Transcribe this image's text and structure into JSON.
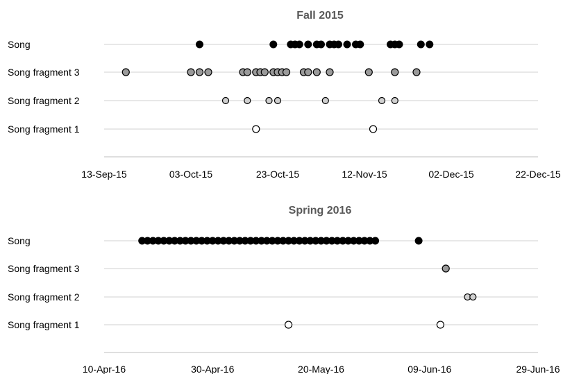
{
  "chart_data": [
    {
      "type": "scatter",
      "title": "Fall 2015",
      "x_axis_type": "date",
      "xlim": [
        "2015-09-13",
        "2015-12-22"
      ],
      "x_ticks": [
        "2015-09-13",
        "2015-10-03",
        "2015-10-23",
        "2015-11-12",
        "2015-12-02",
        "2015-12-22"
      ],
      "tick_labels": [
        "13-Sep-15",
        "03-Oct-15",
        "23-Oct-15",
        "12-Nov-15",
        "02-Dec-15",
        "22-Dec-15"
      ],
      "categories": [
        "Song",
        "Song fragment 3",
        "Song fragment 2",
        "Song fragment 1"
      ],
      "series": [
        {
          "category": "Song",
          "color": "#000000",
          "x": [
            "2015-10-05",
            "2015-10-22",
            "2015-10-26",
            "2015-10-27",
            "2015-10-28",
            "2015-10-30",
            "2015-11-01",
            "2015-11-02",
            "2015-11-04",
            "2015-11-05",
            "2015-11-06",
            "2015-11-08",
            "2015-11-10",
            "2015-11-11",
            "2015-11-18",
            "2015-11-19",
            "2015-11-20",
            "2015-11-25",
            "2015-11-27"
          ]
        },
        {
          "category": "Song fragment 3",
          "color": "#9a9a9a",
          "x": [
            "2015-09-18",
            "2015-10-03",
            "2015-10-05",
            "2015-10-07",
            "2015-10-15",
            "2015-10-16",
            "2015-10-18",
            "2015-10-19",
            "2015-10-20",
            "2015-10-22",
            "2015-10-23",
            "2015-10-24",
            "2015-10-25",
            "2015-10-29",
            "2015-10-30",
            "2015-11-01",
            "2015-11-04",
            "2015-11-13",
            "2015-11-19",
            "2015-11-24"
          ]
        },
        {
          "category": "Song fragment 2",
          "color": "#d0d0d0",
          "x": [
            "2015-10-11",
            "2015-10-16",
            "2015-10-21",
            "2015-10-23",
            "2015-11-03",
            "2015-11-16",
            "2015-11-19"
          ]
        },
        {
          "category": "Song fragment 1",
          "color": "#ffffff",
          "x": [
            "2015-10-18",
            "2015-11-14"
          ]
        }
      ]
    },
    {
      "type": "scatter",
      "title": "Spring 2016",
      "x_axis_type": "date",
      "xlim": [
        "2016-04-10",
        "2016-06-29"
      ],
      "x_ticks": [
        "2016-04-10",
        "2016-04-30",
        "2016-05-20",
        "2016-06-09",
        "2016-06-29"
      ],
      "tick_labels": [
        "10-Apr-16",
        "30-Apr-16",
        "20-May-16",
        "09-Jun-16",
        "29-Jun-16"
      ],
      "categories": [
        "Song",
        "Song fragment 3",
        "Song fragment 2",
        "Song fragment 1"
      ],
      "series": [
        {
          "category": "Song",
          "color": "#000000",
          "x": [
            "2016-04-17",
            "2016-04-18",
            "2016-04-19",
            "2016-04-20",
            "2016-04-21",
            "2016-04-22",
            "2016-04-23",
            "2016-04-24",
            "2016-04-25",
            "2016-04-26",
            "2016-04-27",
            "2016-04-28",
            "2016-04-29",
            "2016-04-30",
            "2016-05-01",
            "2016-05-02",
            "2016-05-03",
            "2016-05-04",
            "2016-05-05",
            "2016-05-06",
            "2016-05-07",
            "2016-05-08",
            "2016-05-09",
            "2016-05-10",
            "2016-05-11",
            "2016-05-12",
            "2016-05-13",
            "2016-05-14",
            "2016-05-15",
            "2016-05-16",
            "2016-05-17",
            "2016-05-18",
            "2016-05-19",
            "2016-05-20",
            "2016-05-21",
            "2016-05-22",
            "2016-05-23",
            "2016-05-24",
            "2016-05-25",
            "2016-05-26",
            "2016-05-27",
            "2016-05-28",
            "2016-05-29",
            "2016-05-30",
            "2016-06-07"
          ]
        },
        {
          "category": "Song fragment 3",
          "color": "#9a9a9a",
          "x": [
            "2016-06-12"
          ]
        },
        {
          "category": "Song fragment 2",
          "color": "#d0d0d0",
          "x": [
            "2016-06-16",
            "2016-06-17"
          ]
        },
        {
          "category": "Song fragment 1",
          "color": "#ffffff",
          "x": [
            "2016-05-14",
            "2016-06-11"
          ]
        }
      ]
    }
  ]
}
